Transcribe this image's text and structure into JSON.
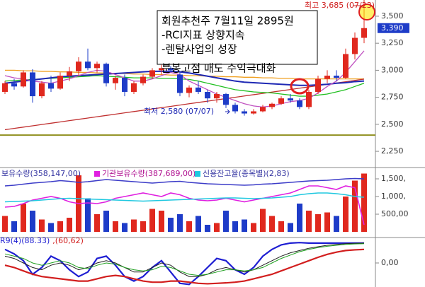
{
  "chart_data": [
    {
      "type": "candlestick",
      "open": [
        2800,
        2880,
        2850,
        2980,
        2760,
        2880,
        2830,
        2950,
        2990,
        3080,
        3020,
        3060,
        2880,
        2930,
        2800,
        2880,
        2940,
        3000,
        3020,
        2960,
        2790,
        2840,
        2800,
        2740,
        2780,
        2680,
        2620,
        2600,
        2620,
        2660,
        2690,
        2740,
        2720,
        2660,
        2800,
        2920,
        2950,
        2930,
        3150,
        3300
      ],
      "high": [
        2900,
        2920,
        3000,
        3010,
        2900,
        2950,
        2980,
        3030,
        3120,
        3200,
        3080,
        3070,
        2950,
        2960,
        2900,
        2960,
        3020,
        3050,
        3040,
        2980,
        2860,
        2900,
        2820,
        2800,
        2790,
        2700,
        2640,
        2640,
        2680,
        2700,
        2760,
        2780,
        2740,
        2820,
        2950,
        3000,
        3000,
        3200,
        3350,
        3685
      ],
      "low": [
        2780,
        2820,
        2840,
        2700,
        2740,
        2800,
        2820,
        2900,
        2950,
        3000,
        2980,
        2850,
        2820,
        2760,
        2780,
        2860,
        2920,
        2960,
        2980,
        2760,
        2750,
        2780,
        2700,
        2700,
        2650,
        2600,
        2580,
        2590,
        2610,
        2640,
        2680,
        2700,
        2640,
        2640,
        2780,
        2880,
        2900,
        2920,
        3100,
        3250
      ],
      "close": [
        2880,
        2850,
        2980,
        2760,
        2880,
        2830,
        2950,
        2990,
        3080,
        3020,
        3060,
        2880,
        2930,
        2800,
        2880,
        2940,
        3000,
        3020,
        3000,
        2790,
        2840,
        2800,
        2740,
        2780,
        2680,
        2620,
        2600,
        2620,
        2660,
        2690,
        2740,
        2720,
        2660,
        2800,
        2920,
        2950,
        2930,
        3150,
        3300,
        3390
      ],
      "up_color": "#e0281e",
      "down_color": "#1e3cc8",
      "overlays": [
        {
          "color": "#f0a020",
          "values": [
            3000,
            3000,
            2995,
            2995,
            2990,
            2990,
            2985,
            2985,
            2980,
            2980,
            2975,
            2975,
            2970,
            2970,
            2965,
            2965,
            2960,
            2960,
            2955,
            2955,
            2950,
            2950,
            2945,
            2945,
            2940,
            2940,
            2935,
            2935,
            2930,
            2930,
            2925,
            2925,
            2920,
            2920,
            2920,
            2920,
            2920,
            2920,
            2920,
            2920
          ]
        },
        {
          "color": "#c03030",
          "values": [
            2450,
            2462,
            2474,
            2486,
            2498,
            2510,
            2522,
            2534,
            2546,
            2558,
            2570,
            2582,
            2594,
            2606,
            2618,
            2630,
            2642,
            2654,
            2666,
            2678,
            2690,
            2702,
            2714,
            2726,
            2738,
            2750,
            2762,
            2774,
            2786,
            2798,
            2810,
            2822,
            2834,
            2846,
            2858,
            2870,
            2882,
            2894,
            2906,
            2918
          ]
        },
        {
          "color": "#20c020",
          "values": [
            2900,
            2905,
            2910,
            2915,
            2920,
            2925,
            2930,
            2935,
            2940,
            2945,
            2950,
            2945,
            2940,
            2935,
            2930,
            2930,
            2930,
            2925,
            2925,
            2920,
            2915,
            2900,
            2880,
            2860,
            2840,
            2820,
            2810,
            2800,
            2795,
            2790,
            2780,
            2770,
            2760,
            2760,
            2770,
            2780,
            2800,
            2820,
            2850,
            2880
          ]
        },
        {
          "color": "#1e28b4",
          "values": [
            2880,
            2890,
            2900,
            2910,
            2920,
            2930,
            2940,
            2945,
            2950,
            2955,
            2960,
            2965,
            2970,
            2975,
            2980,
            2985,
            2990,
            2990,
            2990,
            2985,
            2975,
            2960,
            2945,
            2930,
            2915,
            2900,
            2890,
            2885,
            2880,
            2875,
            2870,
            2865,
            2860,
            2860,
            2865,
            2870,
            2880,
            2885,
            2895,
            2900
          ]
        },
        {
          "color": "#c050c0",
          "values": [
            2950,
            2930,
            2920,
            2900,
            2890,
            2880,
            2900,
            2920,
            2950,
            2980,
            3000,
            2990,
            2960,
            2930,
            2900,
            2900,
            2920,
            2950,
            2980,
            2960,
            2900,
            2860,
            2820,
            2780,
            2750,
            2720,
            2690,
            2670,
            2660,
            2670,
            2690,
            2710,
            2720,
            2740,
            2790,
            2850,
            2900,
            2980,
            3080,
            3180
          ]
        }
      ],
      "hline": {
        "value": 2400,
        "color": "#909020"
      },
      "ylim": [
        2100,
        3650
      ],
      "yticks": [
        {
          "value": 2250,
          "label": "2,250"
        },
        {
          "value": 2500,
          "label": "2,500"
        },
        {
          "value": 2750,
          "label": "2,750"
        },
        {
          "value": 3000,
          "label": "3,000"
        },
        {
          "value": 3250,
          "label": "3,250"
        },
        {
          "value": 3500,
          "label": "3,500"
        }
      ],
      "last_price": {
        "value": 3390,
        "label": "3,390"
      },
      "high_note": "최고 3,685 (07/23)",
      "low_note": "최저 2,580 (07/07)",
      "note_lines": [
        "회원추천주 7월11일 2895원",
        "-RCI지표 상향지속",
        "-렌탈사업의 성장"
      ],
      "note_bottom": "분봉고점 매도 수익극대화"
    },
    {
      "type": "bar-line",
      "values": [
        450000,
        300000,
        800000,
        600000,
        350000,
        250000,
        300000,
        400000,
        1600000,
        950000,
        500000,
        600000,
        300000,
        250000,
        350000,
        300000,
        650000,
        600000,
        400000,
        500000,
        300000,
        450000,
        200000,
        250000,
        600000,
        300000,
        350000,
        250000,
        650000,
        450000,
        300000,
        250000,
        800000,
        600000,
        500000,
        550000,
        450000,
        1000000,
        1450000,
        1650000
      ],
      "series": [
        {
          "name": "보유수량(358,147,00)",
          "color": "#3c3cc8",
          "values": [
            1300000,
            1320000,
            1350000,
            1380000,
            1400000,
            1420000,
            1450000,
            1430000,
            1400000,
            1420000,
            1450000,
            1480000,
            1460000,
            1440000,
            1420000,
            1400000,
            1380000,
            1400000,
            1420000,
            1430000,
            1400000,
            1380000,
            1360000,
            1350000,
            1340000,
            1330000,
            1320000,
            1330000,
            1350000,
            1360000,
            1380000,
            1400000,
            1420000,
            1440000,
            1450000,
            1460000,
            1480000,
            1500000,
            1510000,
            1500000
          ]
        },
        {
          "name": "기관보유수량(387,689,00)",
          "color": "#e020e0",
          "values": [
            700000,
            720000,
            800000,
            900000,
            950000,
            1000000,
            950000,
            850000,
            800000,
            820000,
            800000,
            850000,
            950000,
            1000000,
            1050000,
            1100000,
            1050000,
            1000000,
            1100000,
            1050000,
            950000,
            900000,
            880000,
            900000,
            950000,
            900000,
            850000,
            900000,
            950000,
            1000000,
            1050000,
            1100000,
            1200000,
            1300000,
            1300000,
            1250000,
            1200000,
            1300000,
            1250000,
            200000
          ]
        },
        {
          "name": "신용잔고율(종목별)(2,83)",
          "color": "#20c8e0",
          "values": [
            850000,
            860000,
            870000,
            880000,
            900000,
            920000,
            940000,
            950000,
            940000,
            930000,
            920000,
            910000,
            900000,
            890000,
            880000,
            870000,
            880000,
            890000,
            900000,
            910000,
            920000,
            930000,
            940000,
            950000,
            960000,
            960000,
            950000,
            940000,
            950000,
            960000,
            980000,
            1000000,
            1050000,
            1080000,
            1100000,
            1100000,
            1080000,
            1050000,
            1000000,
            980000
          ]
        }
      ],
      "ylim": [
        -140000,
        1800000
      ],
      "yticks": [
        {
          "value": 500000,
          "label": "500,00"
        },
        {
          "value": 1000000,
          "label": "1,000,"
        },
        {
          "value": 1500000,
          "label": "1,500,"
        }
      ]
    },
    {
      "type": "line",
      "series": [
        {
          "name": "R9(4)(88.33)",
          "color": "#1e1ed2",
          "values": [
            60,
            40,
            10,
            -50,
            -20,
            30,
            10,
            -30,
            -60,
            -40,
            20,
            30,
            -10,
            -60,
            -80,
            -60,
            -20,
            10,
            -40,
            -90,
            -95,
            -60,
            -20,
            20,
            10,
            -30,
            -50,
            -20,
            30,
            60,
            80,
            88,
            90,
            88,
            88,
            88,
            88,
            88,
            88,
            88
          ]
        },
        {
          "name": ",(60,62)",
          "color": "#d21e1e",
          "values": [
            -10,
            -20,
            -35,
            -50,
            -60,
            -65,
            -70,
            -75,
            -80,
            -80,
            -70,
            -60,
            -55,
            -60,
            -70,
            -80,
            -85,
            -85,
            -80,
            -80,
            -85,
            -90,
            -92,
            -90,
            -88,
            -85,
            -80,
            -70,
            -60,
            -50,
            -35,
            -20,
            -5,
            10,
            25,
            38,
            48,
            55,
            58,
            60
          ]
        },
        {
          "color": "#202020",
          "values": [
            30,
            20,
            0,
            -20,
            -30,
            -10,
            0,
            -10,
            -30,
            -20,
            0,
            10,
            0,
            -20,
            -40,
            -40,
            -20,
            0,
            -10,
            -40,
            -60,
            -60,
            -50,
            -30,
            -20,
            -30,
            -40,
            -30,
            -10,
            10,
            30,
            45,
            55,
            65,
            72,
            78,
            82,
            85,
            87,
            88
          ]
        },
        {
          "color": "#20a020",
          "values": [
            40,
            30,
            20,
            0,
            -10,
            0,
            10,
            0,
            -20,
            -25,
            -10,
            0,
            -5,
            -20,
            -30,
            -35,
            -30,
            -15,
            -20,
            -35,
            -50,
            -55,
            -50,
            -40,
            -30,
            -30,
            -35,
            -30,
            -20,
            0,
            20,
            35,
            50,
            60,
            68,
            74,
            78,
            82,
            84,
            85
          ]
        }
      ],
      "ylim": [
        -100,
        100
      ],
      "yticks": [
        {
          "value": 0,
          "label": "0,00"
        }
      ]
    }
  ]
}
